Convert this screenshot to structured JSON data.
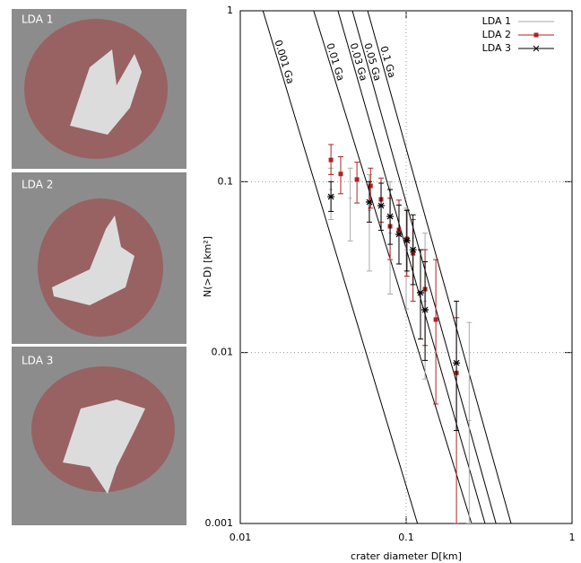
{
  "panels": [
    {
      "label": "LDA 1"
    },
    {
      "label": "LDA 2"
    },
    {
      "label": "LDA 3"
    }
  ],
  "chart_data": {
    "type": "line",
    "xlabel": "crater diameter D[km]",
    "ylabel": "N(>D) [km²]",
    "xlim": [
      0.01,
      1
    ],
    "ylim": [
      0.001,
      1
    ],
    "log_x": true,
    "log_y": true,
    "xticks": [
      0.01,
      0.1,
      1
    ],
    "yticks": [
      0.001,
      0.01,
      0.1,
      1
    ],
    "grid": true,
    "legend": "upper right",
    "isochrons": [
      {
        "name": "0.001 Ga",
        "color": "#000000",
        "x": [
          0.0137,
          0.117
        ],
        "values": [
          1,
          0.001
        ]
      },
      {
        "name": "0.01 Ga",
        "color": "#000000",
        "x": [
          0.0277,
          0.248
        ],
        "values": [
          1,
          0.001
        ]
      },
      {
        "name": "0.03 Ga",
        "color": "#000000",
        "x": [
          0.0388,
          0.299
        ],
        "values": [
          1,
          0.001
        ]
      },
      {
        "name": "0.05 Ga",
        "color": "#000000",
        "x": [
          0.0474,
          0.348
        ],
        "values": [
          1,
          0.001
        ]
      },
      {
        "name": "0.1 Ga",
        "color": "#000000",
        "x": [
          0.0586,
          0.429
        ],
        "values": [
          1,
          0.001
        ]
      }
    ],
    "series": [
      {
        "name": "LDA 1",
        "color": "#aaaaaa",
        "marker": "none",
        "x": [
          0.0352,
          0.046,
          0.06,
          0.08,
          0.1,
          0.13,
          0.24
        ],
        "values": [
          0.09,
          0.08,
          0.068,
          0.05,
          0.04,
          0.02,
          0.004
        ],
        "lower": [
          0.06,
          0.045,
          0.03,
          0.022,
          0.018,
          0.007,
          0.001
        ],
        "upper": [
          0.12,
          0.12,
          0.11,
          0.1,
          0.07,
          0.05,
          0.015
        ]
      },
      {
        "name": "LDA 2",
        "color": "#b22222",
        "marker": "square",
        "x": [
          0.0352,
          0.0403,
          0.0505,
          0.061,
          0.0706,
          0.08,
          0.0905,
          0.101,
          0.11,
          0.13,
          0.151,
          0.201
        ],
        "values": [
          0.134,
          0.111,
          0.103,
          0.0945,
          0.0788,
          0.0548,
          0.0522,
          0.0463,
          0.0381,
          0.0235,
          0.0156,
          0.0076
        ],
        "lower": [
          0.11,
          0.085,
          0.075,
          0.07,
          0.058,
          0.035,
          0.033,
          0.028,
          0.02,
          0.011,
          0.005,
          0.001
        ],
        "upper": [
          0.165,
          0.14,
          0.13,
          0.12,
          0.105,
          0.08,
          0.078,
          0.068,
          0.06,
          0.04,
          0.035,
          0.016
        ]
      },
      {
        "name": "LDA 3",
        "color": "#000000",
        "marker": "star",
        "x": [
          0.0352,
          0.06,
          0.0706,
          0.08,
          0.0905,
          0.101,
          0.11,
          0.122,
          0.13,
          0.201
        ],
        "values": [
          0.0817,
          0.076,
          0.0724,
          0.0626,
          0.0492,
          0.0452,
          0.04,
          0.0224,
          0.0178,
          0.0087
        ],
        "lower": [
          0.067,
          0.058,
          0.052,
          0.043,
          0.033,
          0.03,
          0.025,
          0.012,
          0.009,
          0.0035
        ],
        "upper": [
          0.1,
          0.1,
          0.098,
          0.09,
          0.073,
          0.068,
          0.064,
          0.04,
          0.034,
          0.02
        ]
      }
    ]
  }
}
